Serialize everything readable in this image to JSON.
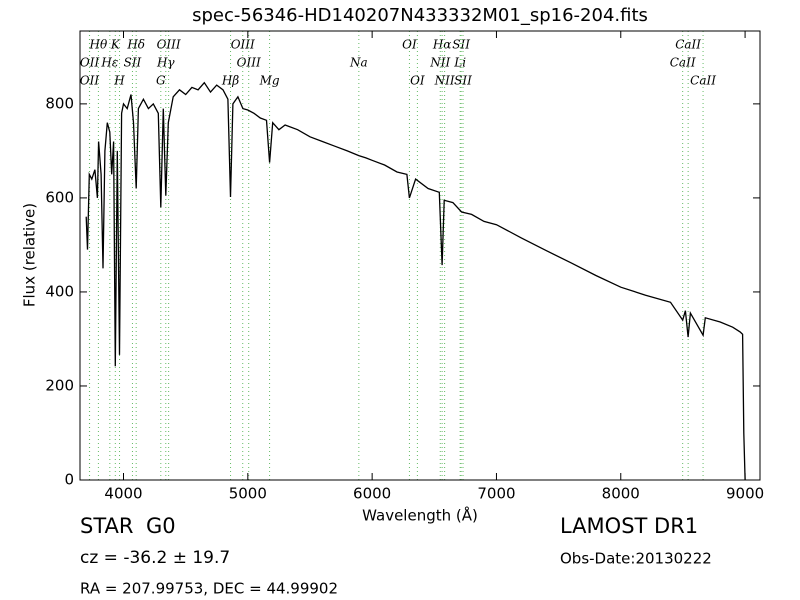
{
  "chart_data": {
    "type": "line",
    "title": "spec-56346-HD140207N433332M01_sp16-204.fits",
    "x_label": "Wavelength (Å)",
    "y_label": "Flux (relative)",
    "xlim": [
      3650,
      9120
    ],
    "ylim": [
      0,
      955
    ],
    "xticks": [
      4000,
      5000,
      6000,
      7000,
      8000,
      9000
    ],
    "yticks": [
      0,
      200,
      400,
      600,
      800
    ],
    "color": "#000000",
    "line_color": "#66bb66",
    "x": [
      3700,
      3710,
      3725,
      3745,
      3770,
      3790,
      3800,
      3820,
      3835,
      3850,
      3870,
      3890,
      3905,
      3920,
      3934,
      3950,
      3968,
      3985,
      4000,
      4030,
      4060,
      4080,
      4102,
      4120,
      4160,
      4200,
      4240,
      4280,
      4300,
      4320,
      4340,
      4360,
      4400,
      4450,
      4500,
      4550,
      4600,
      4650,
      4700,
      4750,
      4800,
      4840,
      4861,
      4880,
      4920,
      4960,
      5000,
      5050,
      5100,
      5150,
      5175,
      5200,
      5250,
      5300,
      5400,
      5500,
      5600,
      5700,
      5800,
      5893,
      5950,
      6000,
      6100,
      6200,
      6280,
      6300,
      6350,
      6450,
      6540,
      6563,
      6580,
      6650,
      6720,
      6800,
      6900,
      7000,
      7200,
      7400,
      7600,
      7800,
      8000,
      8200,
      8400,
      8498,
      8520,
      8542,
      8560,
      8662,
      8680,
      8800,
      8900,
      8960,
      8980,
      8990,
      9000
    ],
    "values": [
      560,
      490,
      650,
      640,
      660,
      600,
      720,
      650,
      450,
      700,
      760,
      740,
      650,
      720,
      242,
      700,
      266,
      780,
      800,
      790,
      820,
      760,
      620,
      790,
      810,
      790,
      800,
      780,
      580,
      790,
      605,
      760,
      815,
      830,
      820,
      835,
      830,
      845,
      825,
      840,
      830,
      810,
      602,
      800,
      815,
      790,
      787,
      780,
      770,
      765,
      675,
      760,
      745,
      755,
      745,
      730,
      720,
      710,
      700,
      690,
      685,
      680,
      670,
      655,
      650,
      600,
      640,
      620,
      612,
      457,
      595,
      590,
      570,
      565,
      550,
      543,
      515,
      488,
      462,
      435,
      410,
      393,
      378,
      340,
      360,
      304,
      355,
      308,
      345,
      336,
      325,
      315,
      310,
      100,
      0
    ],
    "lines": [
      {
        "name": "Hθ",
        "wavelength": 3798
      },
      {
        "name": "OII",
        "wavelength": 3727
      },
      {
        "name": "OII",
        "wavelength": 3726
      },
      {
        "name": "K",
        "wavelength": 3934
      },
      {
        "name": "Hε",
        "wavelength": 3890
      },
      {
        "name": "H",
        "wavelength": 3968
      },
      {
        "name": "Hδ",
        "wavelength": 4102
      },
      {
        "name": "SII",
        "wavelength": 4072
      },
      {
        "name": "G",
        "wavelength": 4300
      },
      {
        "name": "OIII",
        "wavelength": 4363
      },
      {
        "name": "Hγ",
        "wavelength": 4340
      },
      {
        "name": "Hβ",
        "wavelength": 4861
      },
      {
        "name": "OIII",
        "wavelength": 4959
      },
      {
        "name": "OIII",
        "wavelength": 5007
      },
      {
        "name": "Mg",
        "wavelength": 5175
      },
      {
        "name": "OI",
        "wavelength": 6300
      },
      {
        "name": "Na",
        "wavelength": 5893
      },
      {
        "name": "OI",
        "wavelength": 6364
      },
      {
        "name": "Hα",
        "wavelength": 6563
      },
      {
        "name": "NII",
        "wavelength": 6548
      },
      {
        "name": "NII",
        "wavelength": 6583
      },
      {
        "name": "SII",
        "wavelength": 6716
      },
      {
        "name": "Li",
        "wavelength": 6708
      },
      {
        "name": "SII",
        "wavelength": 6731
      },
      {
        "name": "CaII",
        "wavelength": 8542
      },
      {
        "name": "CaII",
        "wavelength": 8498
      },
      {
        "name": "CaII",
        "wavelength": 8662
      }
    ]
  },
  "info": {
    "class": "STAR",
    "subclass": "G0",
    "cz": "cz = -36.2 ± 19.7",
    "position": "RA = 207.99753, DEC = 44.99902",
    "release": "LAMOST DR1",
    "obs_date": "Obs-Date:20130222"
  }
}
